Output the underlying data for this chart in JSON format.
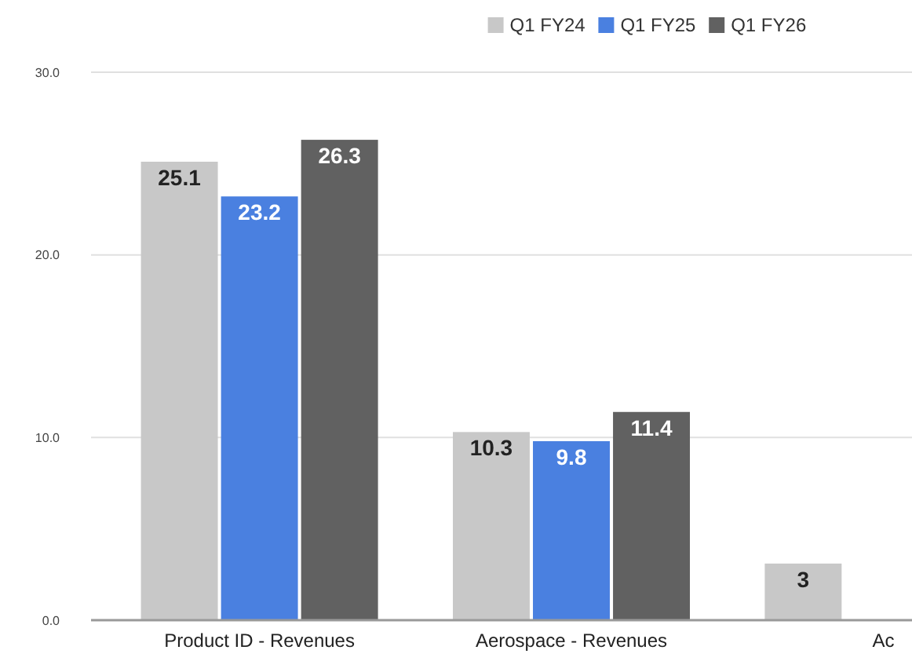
{
  "chart_data": {
    "type": "bar",
    "categories": [
      "Product ID - Revenues",
      "Aerospace - Revenues",
      "Ac"
    ],
    "series": [
      {
        "name": "Q1 FY24",
        "color": "#c8c8c8",
        "values": [
          25.1,
          10.3,
          3.1
        ],
        "value_labels": [
          "25.1",
          "10.3",
          "3"
        ]
      },
      {
        "name": "Q1 FY25",
        "color": "#4a80e0",
        "values": [
          23.2,
          9.8,
          null
        ],
        "value_labels": [
          "23.2",
          "9.8",
          null
        ]
      },
      {
        "name": "Q1 FY26",
        "color": "#616161",
        "values": [
          26.3,
          11.4,
          null
        ],
        "value_labels": [
          "26.3",
          "11.4",
          null
        ]
      }
    ],
    "ylim": [
      0,
      30
    ],
    "yticks": [
      {
        "value": 0,
        "label": "0.0"
      },
      {
        "value": 10,
        "label": "10.0"
      },
      {
        "value": 20,
        "label": "20.0"
      },
      {
        "value": 30,
        "label": "30.0"
      }
    ],
    "grid": "y",
    "legend": "top right"
  }
}
